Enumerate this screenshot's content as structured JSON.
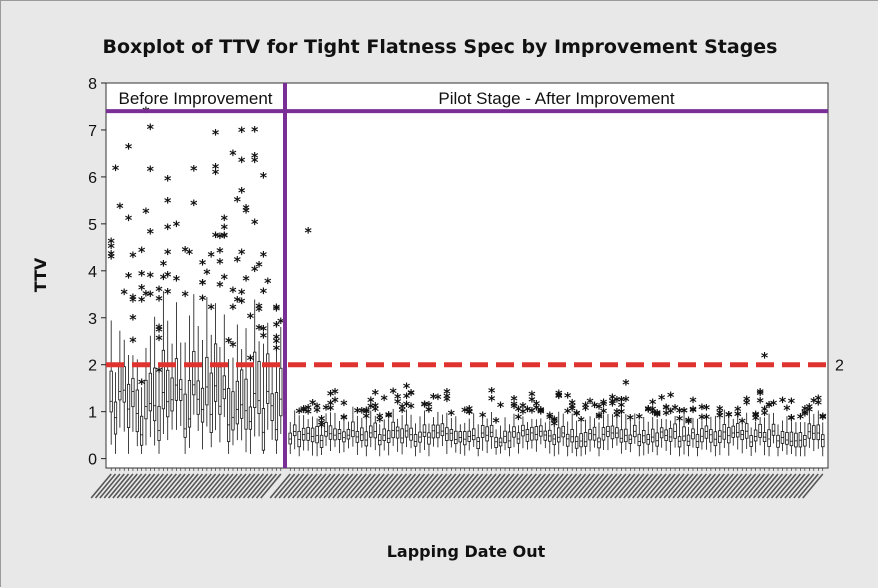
{
  "chart_data": {
    "type": "boxplot",
    "title": "Boxplot of TTV for Tight Flatness Spec by Improvement Stages",
    "xlabel": "Lapping Date Out",
    "ylabel": "TTV",
    "ylim": [
      -0.2,
      8
    ],
    "yticks": [
      0,
      1,
      2,
      3,
      4,
      5,
      6,
      7,
      8
    ],
    "grid": false,
    "reference_line": {
      "value": 2,
      "label": "2",
      "color": "#e0322f",
      "style": "dashed"
    },
    "stage_line_value": 7.4,
    "stage_color": "#7a2f96",
    "stages": [
      {
        "label": "Before Improvement",
        "box_count": 40
      },
      {
        "label": "Pilot Stage - After Improvement",
        "box_count": 120
      }
    ],
    "group_count": 160,
    "x_tick_labels_note": "dense rotated date labels, not legible",
    "annotated_outliers": [
      {
        "group_index": 44,
        "value": 4.82
      },
      {
        "group_index": 5,
        "value": 2.48
      },
      {
        "group_index": 72,
        "value": 1.28
      },
      {
        "group_index": 115,
        "value": 1.58
      },
      {
        "group_index": 146,
        "value": 2.15
      },
      {
        "group_index": 142,
        "value": 1.23
      }
    ]
  }
}
